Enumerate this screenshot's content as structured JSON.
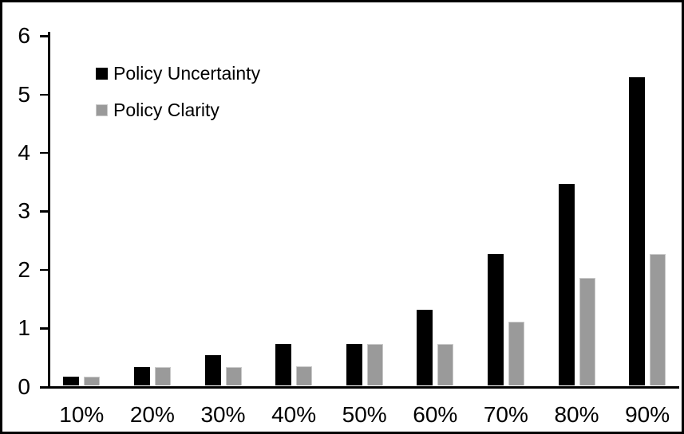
{
  "chart_data": {
    "type": "bar",
    "categories": [
      "10%",
      "20%",
      "30%",
      "40%",
      "50%",
      "60%",
      "70%",
      "80%",
      "90%"
    ],
    "series": [
      {
        "name": "Policy Uncertainty",
        "color": "#000000",
        "values": [
          0.15,
          0.32,
          0.52,
          0.71,
          0.72,
          1.3,
          2.26,
          3.45,
          5.28
        ]
      },
      {
        "name": "Policy Clarity",
        "color": "#9a9a9a",
        "values": [
          0.15,
          0.32,
          0.32,
          0.33,
          0.71,
          0.71,
          1.09,
          1.85,
          2.26
        ]
      }
    ],
    "title": "",
    "xlabel": "",
    "ylabel": "",
    "ylim": [
      0,
      6
    ],
    "yticks": [
      0,
      1,
      2,
      3,
      4,
      5,
      6
    ],
    "grid": false,
    "legend_position": "inside-top-left",
    "axis_color": "#000000",
    "background_color": "#ffffff",
    "frame_color": "#000000"
  }
}
